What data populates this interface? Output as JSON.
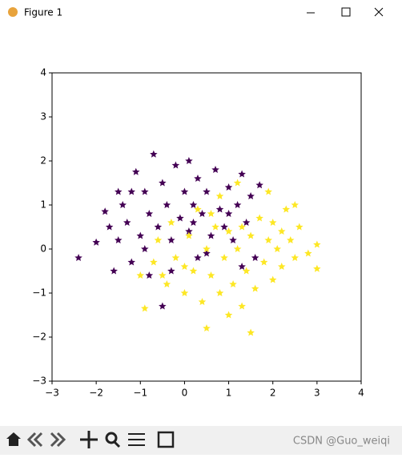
{
  "window": {
    "title": "Figure 1"
  },
  "watermark": "CSDN @Guo_weiqi",
  "chart_data": {
    "type": "scatter",
    "xlim": [
      -3,
      4
    ],
    "ylim": [
      -3,
      4
    ],
    "xticks": [
      {
        "value": -3,
        "label": "−3"
      },
      {
        "value": -2,
        "label": "−2"
      },
      {
        "value": -1,
        "label": "−1"
      },
      0,
      1,
      2,
      3,
      4
    ],
    "yticks": [
      {
        "value": -3,
        "label": "−3"
      },
      {
        "value": -2,
        "label": "−2"
      },
      {
        "value": -1,
        "label": "−1"
      },
      0,
      1,
      2,
      3,
      4
    ],
    "marker": "star",
    "series": [
      {
        "color": "#440154",
        "x": [
          -2.4,
          -2.0,
          -1.8,
          -1.7,
          -1.6,
          -1.5,
          -1.4,
          -1.3,
          -1.2,
          -1.1,
          -1.0,
          -0.9,
          -0.8,
          -0.8,
          -0.7,
          -0.6,
          -0.5,
          -0.5,
          -0.4,
          -0.3,
          -0.2,
          -0.1,
          0.0,
          0.1,
          0.1,
          0.2,
          0.3,
          0.3,
          0.4,
          0.5,
          0.6,
          0.7,
          0.8,
          0.9,
          1.0,
          1.1,
          1.2,
          1.3,
          1.4,
          1.5,
          1.6,
          1.7,
          1.3,
          -1.2,
          -0.3,
          0.5,
          -1.5,
          -0.9,
          0.2,
          1.0
        ],
        "values": [
          -0.2,
          0.15,
          0.85,
          0.5,
          -0.5,
          0.2,
          1.0,
          0.6,
          -0.3,
          1.75,
          0.3,
          1.3,
          0.8,
          -0.6,
          2.15,
          0.5,
          1.5,
          -1.3,
          1.0,
          0.2,
          1.9,
          0.7,
          1.3,
          2.0,
          0.4,
          1.0,
          -0.2,
          1.6,
          0.8,
          1.3,
          0.3,
          1.8,
          0.9,
          0.5,
          1.4,
          0.2,
          1.0,
          1.7,
          0.6,
          1.2,
          -0.2,
          1.45,
          -0.4,
          1.3,
          -0.5,
          -0.1,
          1.3,
          0.0,
          0.6,
          0.8
        ]
      },
      {
        "color": "#fde725",
        "x": [
          -1.0,
          -0.9,
          -0.7,
          -0.6,
          -0.4,
          -0.3,
          -0.2,
          0.0,
          0.1,
          0.2,
          0.3,
          0.4,
          0.5,
          0.5,
          0.6,
          0.7,
          0.8,
          0.9,
          1.0,
          1.0,
          1.1,
          1.2,
          1.3,
          1.4,
          1.5,
          1.5,
          1.6,
          1.7,
          1.8,
          1.9,
          2.0,
          2.0,
          2.1,
          2.2,
          2.3,
          2.4,
          2.5,
          2.5,
          2.6,
          2.8,
          3.0,
          3.0,
          1.2,
          0.8,
          1.9,
          0.0,
          0.6,
          1.3,
          2.2,
          -0.5
        ],
        "values": [
          -0.6,
          -1.35,
          -0.3,
          0.2,
          -0.8,
          0.6,
          -0.2,
          -1.0,
          0.3,
          -0.5,
          0.9,
          -1.2,
          -1.8,
          0.0,
          -0.6,
          0.5,
          -1.0,
          -0.2,
          -1.5,
          0.4,
          -0.8,
          0.0,
          -1.3,
          -0.5,
          -1.9,
          0.3,
          -0.9,
          0.7,
          -0.3,
          0.2,
          -0.7,
          0.6,
          0.0,
          -0.4,
          0.9,
          0.2,
          1.0,
          -0.2,
          0.5,
          -0.1,
          -0.45,
          0.1,
          1.5,
          1.2,
          1.3,
          -0.4,
          0.8,
          0.5,
          0.4,
          -0.6
        ]
      }
    ]
  }
}
